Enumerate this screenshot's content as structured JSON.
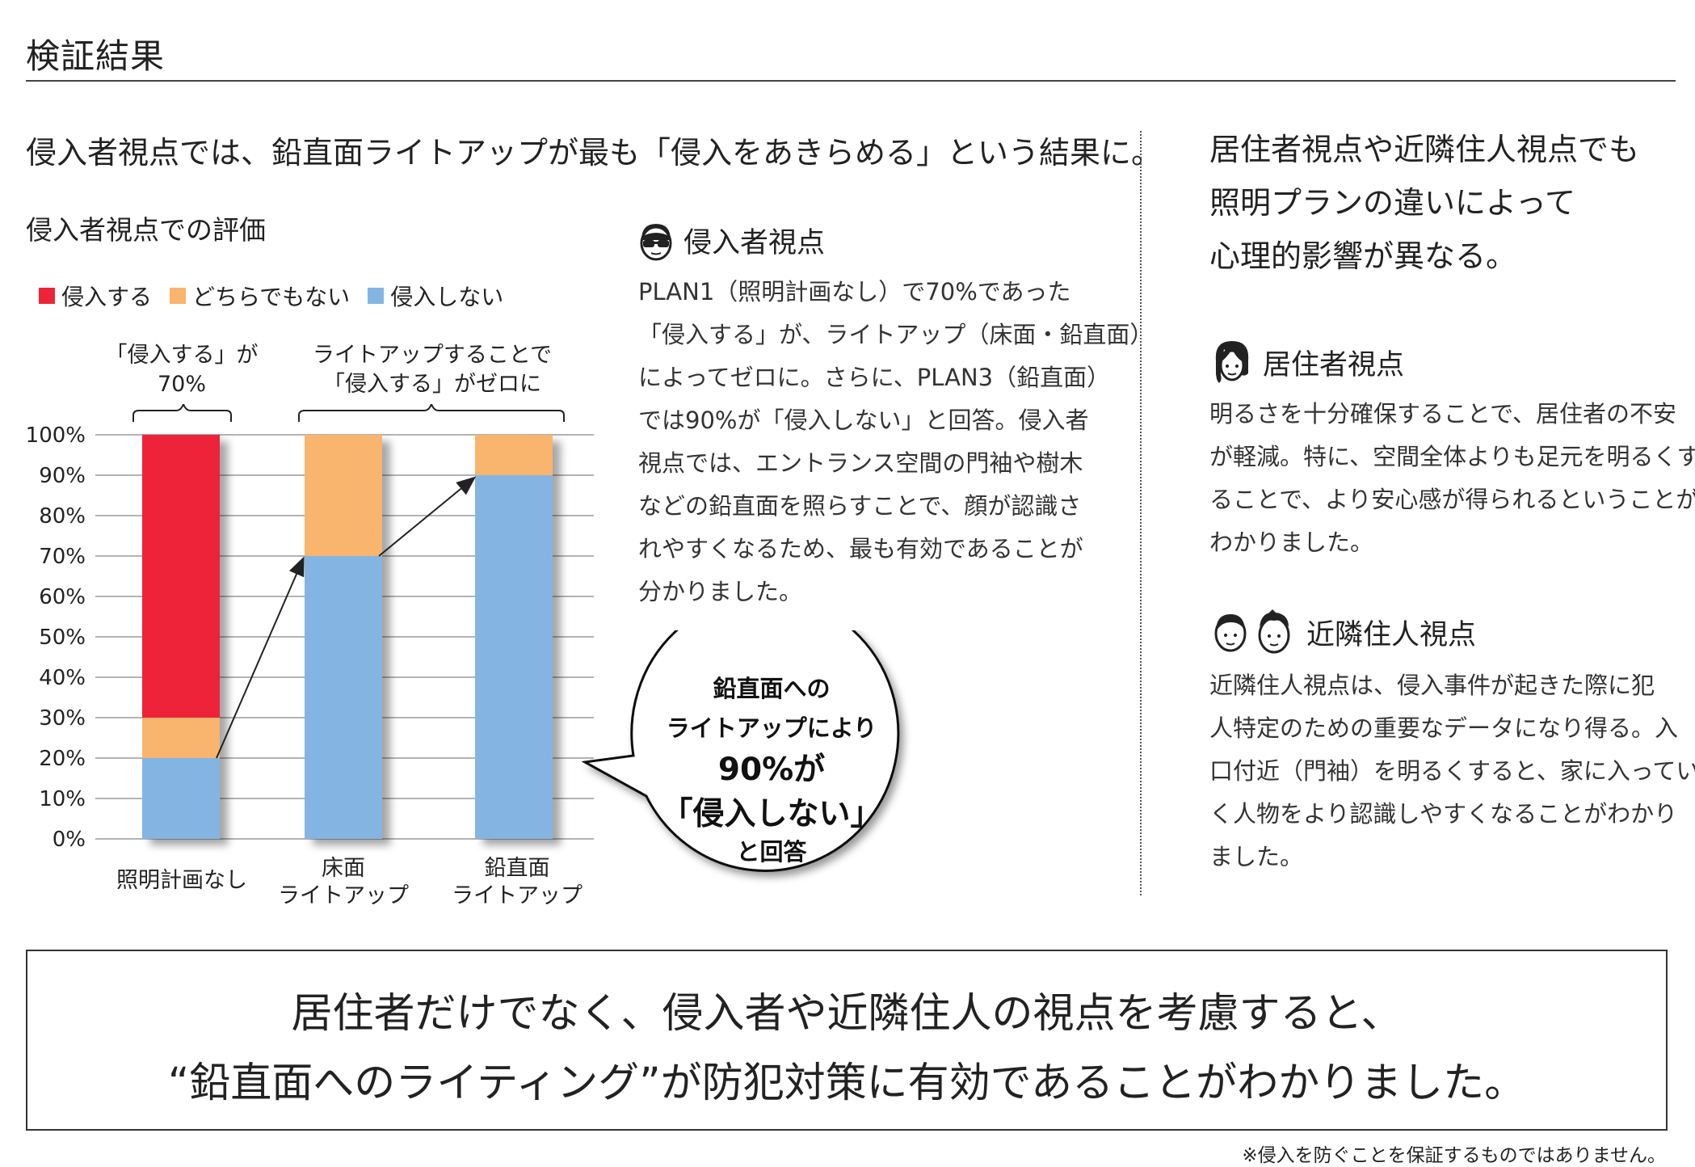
{
  "page_title": "検証結果",
  "headline_left": "侵入者視点では、鉛直面ライトアップが最も「侵入をあきらめる」という結果に。",
  "headline_right": [
    "居住者視点や近隣住人視点でも",
    "照明プランの違いによって",
    "心理的影響が異なる。"
  ],
  "chart_data": {
    "type": "bar",
    "stacked": true,
    "title": "侵入者視点での評価",
    "categories": [
      [
        "照明計画なし"
      ],
      [
        "床面",
        "ライトアップ"
      ],
      [
        "鉛直面",
        "ライトアップ"
      ]
    ],
    "series": [
      {
        "name": "侵入しない",
        "values": [
          20,
          70,
          90
        ],
        "color": "#84b5e2"
      },
      {
        "name": "どちらでもない",
        "values": [
          10,
          30,
          10
        ],
        "color": "#f9b46e"
      },
      {
        "name": "侵入する",
        "values": [
          70,
          0,
          0
        ],
        "color": "#ee2337"
      }
    ],
    "legend_order": [
      "侵入する",
      "どちらでもない",
      "侵入しない"
    ],
    "legend_colors": [
      "#ee2337",
      "#f9b46e",
      "#84b5e2"
    ],
    "y_ticks": [
      "0%",
      "10%",
      "20%",
      "30%",
      "40%",
      "50%",
      "60%",
      "70%",
      "80%",
      "90%",
      "100%"
    ],
    "ylim": [
      0,
      100
    ],
    "grid": true,
    "legend_position": "top-left",
    "annotations": [
      {
        "lines": [
          "「侵入する」が",
          "70%"
        ]
      },
      {
        "lines": [
          "ライトアップすることで",
          "「侵入する」がゼロに"
        ]
      }
    ]
  },
  "intruder": {
    "heading": "侵入者視点",
    "icon": "intruder-sunglasses-icon",
    "lines": [
      "PLAN1（照明計画なし）で70%であった",
      "「侵入する」が、ライトアップ（床面・鉛直面）",
      "によってゼロに。さらに、PLAN3（鉛直面）",
      "では90%が「侵入しない」と回答。侵入者",
      "視点では、エントランス空間の門袖や樹木",
      "などの鉛直面を照らすことで、顔が認識さ",
      "れやすくなるため、最も有効であることが",
      "分かりました。"
    ]
  },
  "bubble": {
    "line1": "鉛直面への",
    "line2": "ライトアップにより",
    "line3": "90%が",
    "line4": "「侵入しない」",
    "line5": "と回答"
  },
  "resident": {
    "heading": "居住者視点",
    "icon": "resident-woman-icon",
    "lines": [
      "明るさを十分確保することで、居住者の不安",
      "が軽減。特に、空間全体よりも足元を明るくす",
      "ることで、より安心感が得られるということが",
      "わかりました。"
    ]
  },
  "neighbor": {
    "heading": "近隣住人視点",
    "icon": "neighbors-couple-icon",
    "lines": [
      "近隣住人視点は、侵入事件が起きた際に犯",
      "人特定のための重要なデータになり得る。入",
      "口付近（門袖）を明るくすると、家に入ってい",
      "く人物をより認識しやすくなることがわかり",
      "ました。"
    ]
  },
  "conclusion": {
    "line1": "居住者だけでなく、侵入者や近隣住人の視点を考慮すると、",
    "line2": "“鉛直面へのライティング”が防犯対策に有効であることがわかりました。"
  },
  "footnote": "※侵入を防ぐことを保証するものではありません。"
}
